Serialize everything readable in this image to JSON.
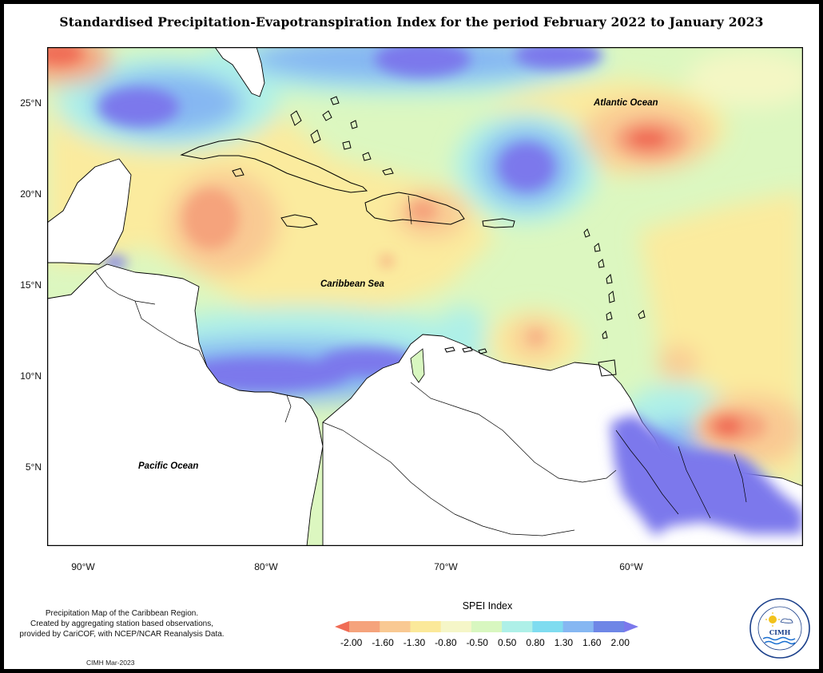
{
  "title": "Standardised Precipitation-Evapotranspiration Index for the period February 2022 to January 2023",
  "map": {
    "lat_ticks": [
      "25°N",
      "20°N",
      "15°N",
      "10°N",
      "5°N"
    ],
    "lon_ticks": [
      "90°W",
      "80°W",
      "70°W",
      "60°W"
    ],
    "ocean_labels": {
      "atlantic": "Atlantic Ocean",
      "caribbean": "Caribbean Sea",
      "pacific": "Pacific Ocean"
    }
  },
  "legend": {
    "title": "SPEI Index",
    "values": [
      "-2.00",
      "-1.60",
      "-1.30",
      "-0.80",
      "-0.50",
      "0.50",
      "0.80",
      "1.30",
      "1.60",
      "2.00"
    ],
    "colors": [
      "#f06c55",
      "#f5a37c",
      "#f9c993",
      "#fbe99a",
      "#f5f6c8",
      "#d8f7c0",
      "#aef0e8",
      "#7fdcf0",
      "#86b7f2",
      "#6e86e6",
      "#7b78ec"
    ]
  },
  "footnote": {
    "line1": "Precipitation Map of the Caribbean Region.",
    "line2": "Created by aggregating station based observations,",
    "line3": "provided by CariCOF, with NCEP/NCAR Reanalysis Data."
  },
  "credit": "CIMH Mar-2023",
  "logo": {
    "text": "CIMH",
    "icon": "cimh-logo-icon"
  }
}
